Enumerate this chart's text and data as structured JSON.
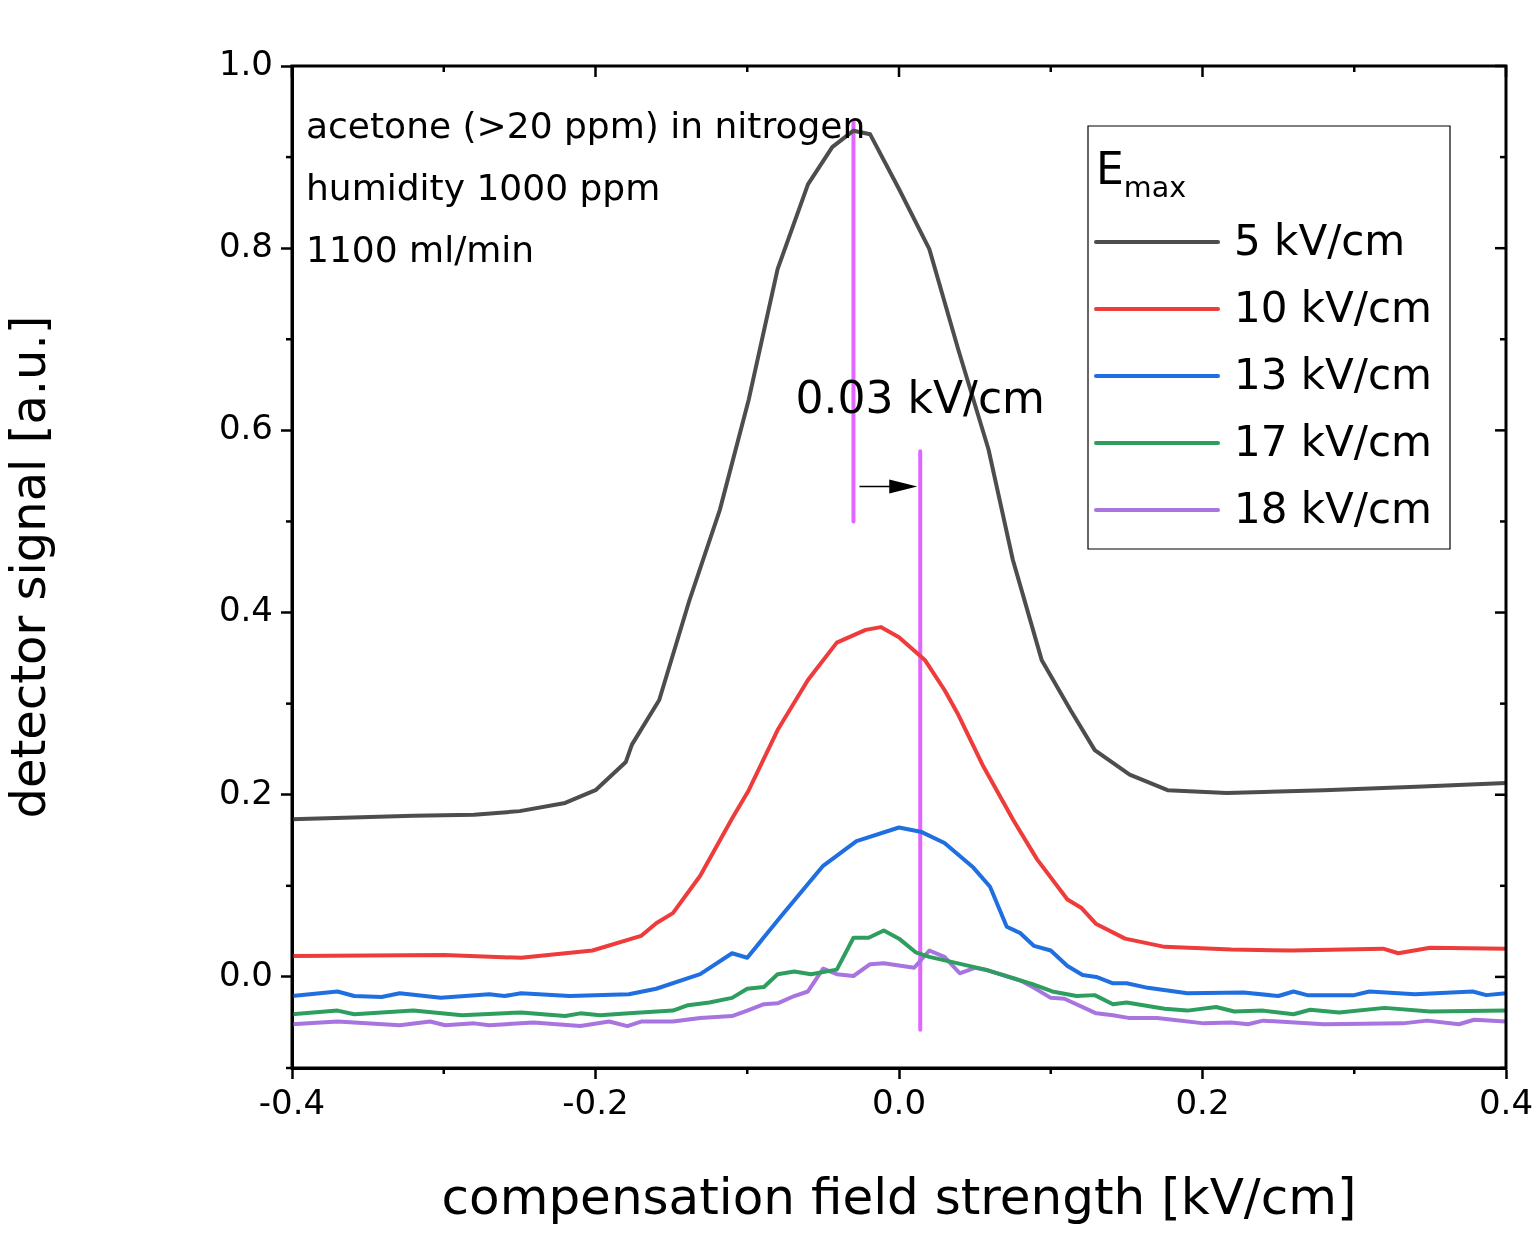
{
  "chart_data": {
    "type": "line",
    "xlabel": "compensation field strength [kV/cm]",
    "ylabel": "detector signal [a.u.]",
    "legend_title": "E$_{max}$",
    "legend": "top right",
    "xlim": [
      -0.4,
      0.4
    ],
    "xticks": [
      -0.4,
      -0.2,
      {
        "value": 0,
        "label": "0.0"
      },
      0.2,
      0.4
    ],
    "ylim": [
      -0.1,
      1.0
    ],
    "yticks": [
      {
        "value": 0,
        "label": "0.0"
      },
      0.2,
      0.4,
      0.6,
      0.8,
      {
        "value": 1,
        "label": "1.0"
      }
    ],
    "annotations": [
      "acetone (>20 ppm) in nitrogen",
      "humidity 1000 ppm",
      "1100 ml/min",
      "0.03 kV/cm"
    ],
    "series": [
      {
        "name": "5 kV/cm",
        "color": "#4d4d4d",
        "x": [
          -0.4,
          -0.36,
          -0.32,
          -0.28,
          -0.25,
          -0.22,
          -0.2,
          -0.18,
          -0.176,
          -0.158,
          -0.138,
          -0.118,
          -0.099,
          -0.08,
          -0.06,
          -0.044,
          -0.03,
          -0.019,
          0.0,
          0.02,
          0.039,
          0.059,
          0.075,
          0.094,
          0.113,
          0.129,
          0.152,
          0.177,
          0.216,
          0.28,
          0.345,
          0.4
        ],
        "values": [
          0.173,
          0.175,
          0.177,
          0.178,
          0.182,
          0.191,
          0.205,
          0.236,
          0.255,
          0.304,
          0.414,
          0.513,
          0.634,
          0.777,
          0.87,
          0.911,
          0.929,
          0.925,
          0.865,
          0.799,
          0.689,
          0.579,
          0.458,
          0.348,
          0.293,
          0.249,
          0.222,
          0.205,
          0.202,
          0.205,
          0.209,
          0.213
        ]
      },
      {
        "name": "10 kV/cm",
        "color": "#ee3b3b",
        "x": [
          -0.4,
          -0.3,
          -0.249,
          -0.202,
          -0.17,
          -0.16,
          -0.149,
          -0.131,
          -0.11,
          -0.099,
          -0.08,
          -0.06,
          -0.041,
          -0.022,
          -0.012,
          0.0,
          0.017,
          0.03,
          0.039,
          0.055,
          0.075,
          0.091,
          0.111,
          0.12,
          0.13,
          0.149,
          0.175,
          0.219,
          0.259,
          0.319,
          0.329,
          0.35,
          0.4
        ],
        "values": [
          0.023,
          0.024,
          0.021,
          0.029,
          0.045,
          0.059,
          0.07,
          0.111,
          0.174,
          0.205,
          0.271,
          0.326,
          0.367,
          0.381,
          0.384,
          0.373,
          0.348,
          0.315,
          0.288,
          0.233,
          0.173,
          0.129,
          0.085,
          0.076,
          0.058,
          0.042,
          0.033,
          0.03,
          0.029,
          0.031,
          0.026,
          0.032,
          0.031
        ]
      },
      {
        "name": "13 kV/cm",
        "color": "#1f6fe0",
        "x": [
          -0.4,
          -0.37,
          -0.359,
          -0.341,
          -0.329,
          -0.302,
          -0.27,
          -0.26,
          -0.249,
          -0.217,
          -0.178,
          -0.16,
          -0.131,
          -0.11,
          -0.1,
          -0.078,
          -0.05,
          -0.028,
          0.0,
          0.015,
          0.03,
          0.049,
          0.06,
          0.071,
          0.08,
          0.089,
          0.1,
          0.111,
          0.121,
          0.13,
          0.141,
          0.15,
          0.164,
          0.19,
          0.227,
          0.25,
          0.26,
          0.269,
          0.3,
          0.31,
          0.34,
          0.378,
          0.387,
          0.4
        ],
        "values": [
          -0.021,
          -0.016,
          -0.021,
          -0.022,
          -0.018,
          -0.023,
          -0.019,
          -0.021,
          -0.018,
          -0.021,
          -0.019,
          -0.013,
          0.003,
          0.026,
          0.021,
          0.066,
          0.122,
          0.149,
          0.164,
          0.159,
          0.147,
          0.12,
          0.099,
          0.055,
          0.048,
          0.034,
          0.029,
          0.012,
          0.002,
          0.0,
          -0.007,
          -0.007,
          -0.012,
          -0.018,
          -0.017,
          -0.021,
          -0.016,
          -0.02,
          -0.02,
          -0.016,
          -0.019,
          -0.016,
          -0.02,
          -0.018
        ]
      },
      {
        "name": "17 kV/cm",
        "color": "#2e9e5e",
        "x": [
          -0.4,
          -0.37,
          -0.359,
          -0.32,
          -0.288,
          -0.249,
          -0.22,
          -0.21,
          -0.197,
          -0.178,
          -0.149,
          -0.139,
          -0.125,
          -0.11,
          -0.1,
          -0.089,
          -0.08,
          -0.069,
          -0.058,
          -0.041,
          -0.03,
          -0.02,
          -0.01,
          0.0,
          0.011,
          0.02,
          0.057,
          0.088,
          0.101,
          0.117,
          0.129,
          0.141,
          0.15,
          0.175,
          0.19,
          0.209,
          0.221,
          0.24,
          0.26,
          0.271,
          0.29,
          0.32,
          0.35,
          0.4
        ],
        "values": [
          -0.041,
          -0.037,
          -0.041,
          -0.037,
          -0.042,
          -0.039,
          -0.043,
          -0.04,
          -0.042,
          -0.04,
          -0.037,
          -0.031,
          -0.028,
          -0.023,
          -0.013,
          -0.011,
          0.003,
          0.006,
          0.003,
          0.008,
          0.043,
          0.043,
          0.051,
          0.042,
          0.027,
          0.022,
          0.008,
          -0.008,
          -0.016,
          -0.021,
          -0.02,
          -0.03,
          -0.028,
          -0.035,
          -0.037,
          -0.033,
          -0.038,
          -0.037,
          -0.041,
          -0.036,
          -0.039,
          -0.034,
          -0.038,
          -0.037
        ]
      },
      {
        "name": "18 kV/cm",
        "color": "#a874e0",
        "x": [
          -0.4,
          -0.37,
          -0.329,
          -0.309,
          -0.299,
          -0.28,
          -0.27,
          -0.241,
          -0.21,
          -0.191,
          -0.179,
          -0.17,
          -0.149,
          -0.131,
          -0.11,
          -0.1,
          -0.089,
          -0.08,
          -0.069,
          -0.06,
          -0.05,
          -0.041,
          -0.03,
          -0.019,
          -0.01,
          0.01,
          0.02,
          0.03,
          0.04,
          0.05,
          0.059,
          0.08,
          0.089,
          0.1,
          0.109,
          0.13,
          0.141,
          0.151,
          0.17,
          0.201,
          0.219,
          0.23,
          0.24,
          0.28,
          0.332,
          0.348,
          0.369,
          0.379,
          0.4
        ],
        "values": [
          -0.052,
          -0.049,
          -0.053,
          -0.049,
          -0.053,
          -0.051,
          -0.053,
          -0.05,
          -0.054,
          -0.049,
          -0.054,
          -0.049,
          -0.049,
          -0.045,
          -0.043,
          -0.037,
          -0.03,
          -0.029,
          -0.021,
          -0.016,
          0.009,
          0.003,
          0.001,
          0.014,
          0.015,
          0.01,
          0.029,
          0.022,
          0.004,
          0.01,
          0.007,
          -0.004,
          -0.012,
          -0.023,
          -0.024,
          -0.04,
          -0.042,
          -0.045,
          -0.045,
          -0.051,
          -0.05,
          -0.052,
          -0.048,
          -0.052,
          -0.051,
          -0.048,
          -0.052,
          -0.047,
          -0.049
        ]
      },
      {
        "color": "#e066ff",
        "x": [
          -0.03,
          -0.03
        ],
        "values": [
          0.94,
          0.5
        ]
      },
      {
        "color": "#e066ff",
        "x": [
          0.014,
          0.014
        ],
        "values": [
          0.577,
          -0.058
        ]
      }
    ]
  }
}
